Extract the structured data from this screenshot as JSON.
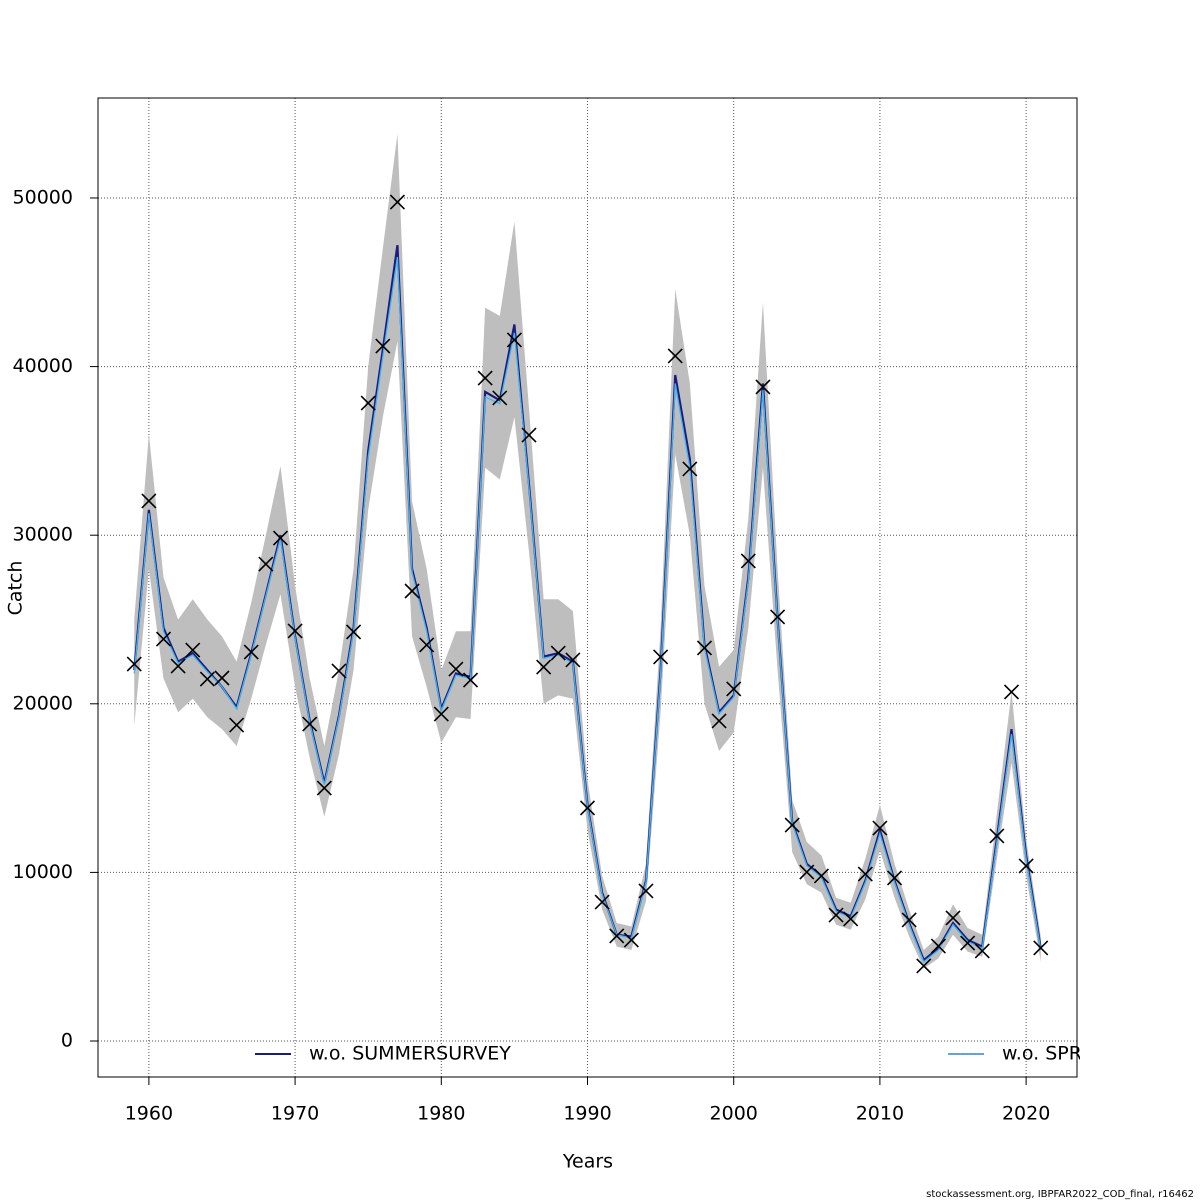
{
  "chart_data": {
    "type": "line",
    "xlabel": "Years",
    "ylabel": "Catch",
    "footnote": "stockassessment.org, IBPFAR2022_COD_final, r16462",
    "x": [
      1959,
      1960,
      1961,
      1962,
      1963,
      1964,
      1965,
      1966,
      1967,
      1968,
      1969,
      1970,
      1971,
      1972,
      1973,
      1974,
      1975,
      1976,
      1977,
      1978,
      1979,
      1980,
      1981,
      1982,
      1983,
      1984,
      1985,
      1986,
      1987,
      1988,
      1989,
      1990,
      1991,
      1992,
      1993,
      1994,
      1995,
      1996,
      1997,
      1998,
      1999,
      2000,
      2001,
      2002,
      2003,
      2004,
      2005,
      2006,
      2007,
      2008,
      2009,
      2010,
      2011,
      2012,
      2013,
      2014,
      2015,
      2016,
      2017,
      2018,
      2019,
      2020,
      2021
    ],
    "series": [
      {
        "name": "w.o. SUMMERSURVEY",
        "color": "#1c1c80",
        "values": [
          22000,
          31500,
          24500,
          22500,
          23000,
          22000,
          21000,
          19800,
          23000,
          26500,
          30000,
          24000,
          19000,
          15300,
          19300,
          24500,
          35000,
          41000,
          47200,
          28000,
          24500,
          19700,
          21800,
          21600,
          38500,
          38000,
          42500,
          33000,
          22800,
          23000,
          22500,
          14000,
          8800,
          6300,
          6200,
          9500,
          22000,
          39500,
          34500,
          23500,
          19500,
          20500,
          27500,
          39000,
          25000,
          13000,
          10500,
          9800,
          7800,
          7400,
          9500,
          12500,
          9500,
          7000,
          4800,
          5500,
          7000,
          6000,
          5600,
          12000,
          18500,
          11000,
          5500
        ]
      },
      {
        "name": "w.o. SPR",
        "color": "#3fb4f0",
        "values": [
          21800,
          31300,
          24300,
          22400,
          22900,
          21900,
          21000,
          19700,
          22900,
          26400,
          29800,
          23900,
          18900,
          15200,
          19200,
          24300,
          34600,
          40600,
          46500,
          27800,
          24300,
          19600,
          21700,
          21500,
          38200,
          37800,
          42000,
          32800,
          22700,
          22900,
          22400,
          13900,
          8700,
          6300,
          6100,
          9400,
          21800,
          39000,
          34000,
          23300,
          19400,
          20400,
          27300,
          38600,
          24900,
          12900,
          10400,
          9700,
          7700,
          7300,
          9400,
          12300,
          9400,
          6900,
          4700,
          5400,
          6900,
          5900,
          5500,
          11800,
          18200,
          10800,
          5400
        ]
      }
    ],
    "band": {
      "color": "#bebebe",
      "low": [
        18700,
        28000,
        21500,
        19500,
        20300,
        19200,
        18500,
        17500,
        20300,
        23500,
        26500,
        21000,
        16800,
        13300,
        17000,
        22000,
        31500,
        37000,
        41500,
        24000,
        21000,
        17700,
        19200,
        19100,
        34000,
        33300,
        37000,
        29000,
        20000,
        20500,
        20300,
        12500,
        7800,
        5600,
        5400,
        8300,
        19500,
        34800,
        30000,
        20000,
        17200,
        18300,
        24500,
        34000,
        22000,
        11200,
        9300,
        8800,
        6900,
        6600,
        8400,
        11300,
        8500,
        6200,
        4300,
        4900,
        6300,
        5300,
        5000,
        10800,
        16500,
        9800,
        4700
      ],
      "high": [
        25000,
        36000,
        27500,
        25000,
        26200,
        25000,
        24000,
        22500,
        26000,
        30000,
        34100,
        27000,
        21500,
        17500,
        22000,
        28000,
        40000,
        47000,
        53800,
        32000,
        28000,
        22000,
        24300,
        24300,
        43500,
        43000,
        48600,
        37500,
        26200,
        26200,
        25500,
        15500,
        9800,
        7000,
        6800,
        10500,
        24500,
        44600,
        39000,
        27000,
        22200,
        23200,
        31000,
        43800,
        28000,
        14300,
        11800,
        11000,
        8500,
        8200,
        10800,
        14000,
        10500,
        7800,
        5400,
        6200,
        8100,
        6700,
        6300,
        13500,
        20700,
        12000,
        6200
      ]
    },
    "observations": {
      "color": "#000000",
      "values": [
        22360,
        32030,
        23840,
        22240,
        23190,
        21470,
        21530,
        18740,
        23070,
        28290,
        29830,
        24320,
        18800,
        15000,
        21950,
        24260,
        37840,
        41220,
        49760,
        26690,
        23490,
        19390,
        22060,
        21410,
        39320,
        38140,
        41580,
        35940,
        22180,
        23010,
        22600,
        13820,
        8240,
        6230,
        5990,
        8900,
        22780,
        40630,
        33930,
        23310,
        18980,
        20880,
        28470,
        38790,
        25150,
        12810,
        10020,
        9790,
        7470,
        7240,
        9900,
        12630,
        9670,
        7180,
        4450,
        5630,
        7300,
        5810,
        5340,
        12160,
        20700,
        10380,
        5520
      ]
    },
    "xlim": [
      1956.52,
      2023.48
    ],
    "ylim": [
      -2135,
      55930
    ],
    "xticks": [
      1960,
      1970,
      1980,
      1990,
      2000,
      2010,
      2020
    ],
    "yticks": [
      0,
      10000,
      20000,
      30000,
      40000,
      50000
    ],
    "grid": true
  }
}
